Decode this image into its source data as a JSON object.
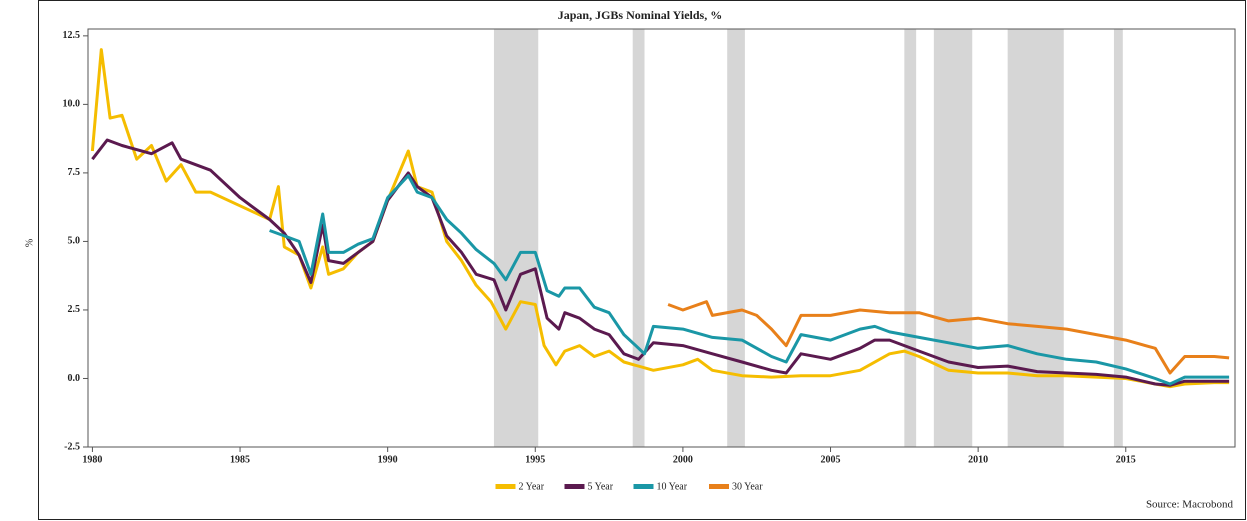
{
  "chart_data": {
    "type": "line",
    "title": "Japan, JGBs Nominal Yields, %",
    "y_label": "%",
    "source": "Source: Macrobond",
    "xlim": [
      1979.85,
      2018.7
    ],
    "xticks": [
      1980,
      1985,
      1990,
      1995,
      2000,
      2005,
      2010,
      2015
    ],
    "ylim": [
      -2.5,
      12.75
    ],
    "yticks": [
      {
        "value": -2.5,
        "label": "-2.5"
      },
      {
        "value": 0,
        "label": "0.0"
      },
      2.5,
      {
        "value": 5,
        "label": "5.0"
      },
      7.5,
      {
        "value": 10,
        "label": "10.0"
      },
      12.5
    ],
    "shaded_periods": [
      [
        1993.6,
        1995.1
      ],
      [
        1998.3,
        1998.7
      ],
      [
        2001.5,
        2002.1
      ],
      [
        2007.5,
        2007.9
      ],
      [
        2008.5,
        2009.8
      ],
      [
        2011.0,
        2012.9
      ],
      [
        2014.6,
        2014.9
      ]
    ],
    "shade_color": "#d6d6d6",
    "series": [
      {
        "name": "2 Year",
        "color": "#f5bd00",
        "x": [
          1980,
          1980.3,
          1980.6,
          1981,
          1981.5,
          1982,
          1982.5,
          1983,
          1983.5,
          1984,
          1985,
          1986,
          1986.3,
          1986.5,
          1987,
          1987.4,
          1987.8,
          1988,
          1988.5,
          1989,
          1989.5,
          1990,
          1990.7,
          1991,
          1991.5,
          1992,
          1992.5,
          1993,
          1993.5,
          1994,
          1994.5,
          1995,
          1995.3,
          1995.7,
          1996,
          1996.5,
          1997,
          1997.5,
          1998,
          1999,
          2000,
          2000.5,
          2001,
          2002,
          2003,
          2004,
          2005,
          2006,
          2007,
          2007.5,
          2008,
          2009,
          2010,
          2011,
          2012,
          2013,
          2014,
          2015,
          2016,
          2016.5,
          2017,
          2018,
          2018.5
        ],
        "values": [
          8.3,
          12.0,
          9.5,
          9.6,
          8.0,
          8.5,
          7.2,
          7.8,
          6.8,
          6.8,
          6.3,
          5.8,
          7.0,
          4.8,
          4.5,
          3.3,
          4.8,
          3.8,
          4.0,
          4.6,
          5.0,
          6.5,
          8.3,
          7.0,
          6.8,
          5.0,
          4.3,
          3.4,
          2.8,
          1.8,
          2.8,
          2.7,
          1.2,
          0.5,
          1.0,
          1.2,
          0.8,
          1.0,
          0.6,
          0.3,
          0.5,
          0.7,
          0.3,
          0.1,
          0.05,
          0.1,
          0.1,
          0.3,
          0.9,
          1.0,
          0.8,
          0.3,
          0.2,
          0.2,
          0.1,
          0.1,
          0.05,
          0.0,
          -0.2,
          -0.3,
          -0.2,
          -0.15,
          -0.15
        ]
      },
      {
        "name": "5 Year",
        "color": "#5b1a4f",
        "x": [
          1980,
          1980.5,
          1981,
          1982,
          1982.7,
          1983,
          1984,
          1985,
          1986,
          1986.5,
          1987,
          1987.4,
          1987.8,
          1988,
          1988.5,
          1989,
          1989.5,
          1990,
          1990.7,
          1991,
          1991.5,
          1992,
          1992.5,
          1993,
          1993.6,
          1994,
          1994.5,
          1995,
          1995.4,
          1995.8,
          1996,
          1996.5,
          1997,
          1997.5,
          1998,
          1998.5,
          1999,
          2000,
          2001,
          2002,
          2003,
          2003.5,
          2004,
          2005,
          2006,
          2006.5,
          2007,
          2008,
          2009,
          2010,
          2011,
          2012,
          2013,
          2014,
          2015,
          2016,
          2016.5,
          2017,
          2018,
          2018.5
        ],
        "values": [
          8.0,
          8.7,
          8.5,
          8.2,
          8.6,
          8.0,
          7.6,
          6.6,
          5.8,
          5.3,
          4.5,
          3.5,
          5.6,
          4.3,
          4.2,
          4.6,
          5.0,
          6.5,
          7.5,
          7.0,
          6.6,
          5.2,
          4.6,
          3.8,
          3.6,
          2.5,
          3.8,
          4.0,
          2.2,
          1.8,
          2.4,
          2.2,
          1.8,
          1.6,
          0.9,
          0.7,
          1.3,
          1.2,
          0.9,
          0.6,
          0.3,
          0.2,
          0.9,
          0.7,
          1.1,
          1.4,
          1.4,
          1.0,
          0.6,
          0.4,
          0.45,
          0.25,
          0.2,
          0.15,
          0.05,
          -0.2,
          -0.25,
          -0.1,
          -0.1,
          -0.1
        ]
      },
      {
        "name": "10 Year",
        "color": "#1a97a6",
        "x": [
          1986,
          1986.5,
          1987,
          1987.4,
          1987.8,
          1988,
          1988.5,
          1989,
          1989.5,
          1990,
          1990.7,
          1991,
          1991.5,
          1992,
          1992.5,
          1993,
          1993.6,
          1994,
          1994.5,
          1995,
          1995.4,
          1995.8,
          1996,
          1996.5,
          1997,
          1997.5,
          1998,
          1998.7,
          1999,
          2000,
          2001,
          2002,
          2003,
          2003.5,
          2004,
          2005,
          2006,
          2006.5,
          2007,
          2008,
          2009,
          2010,
          2011,
          2012,
          2013,
          2014,
          2015,
          2016,
          2016.5,
          2017,
          2018,
          2018.5
        ],
        "values": [
          5.4,
          5.2,
          5.0,
          3.8,
          6.0,
          4.6,
          4.6,
          4.9,
          5.1,
          6.6,
          7.4,
          6.8,
          6.6,
          5.8,
          5.3,
          4.7,
          4.2,
          3.6,
          4.6,
          4.6,
          3.2,
          3.0,
          3.3,
          3.3,
          2.6,
          2.4,
          1.6,
          0.9,
          1.9,
          1.8,
          1.5,
          1.4,
          0.8,
          0.6,
          1.6,
          1.4,
          1.8,
          1.9,
          1.7,
          1.5,
          1.3,
          1.1,
          1.2,
          0.9,
          0.7,
          0.6,
          0.35,
          0.0,
          -0.2,
          0.05,
          0.05,
          0.05
        ]
      },
      {
        "name": "30 Year",
        "color": "#e8801a",
        "x": [
          1999.5,
          2000,
          2000.8,
          2001,
          2002,
          2002.5,
          2003,
          2003.5,
          2004,
          2005,
          2006,
          2007,
          2008,
          2009,
          2010,
          2011,
          2012,
          2013,
          2014,
          2015,
          2016,
          2016.5,
          2017,
          2018,
          2018.5
        ],
        "values": [
          2.7,
          2.5,
          2.8,
          2.3,
          2.5,
          2.3,
          1.8,
          1.2,
          2.3,
          2.3,
          2.5,
          2.4,
          2.4,
          2.1,
          2.2,
          2.0,
          1.9,
          1.8,
          1.6,
          1.4,
          1.1,
          0.2,
          0.8,
          0.8,
          0.75
        ]
      }
    ]
  }
}
